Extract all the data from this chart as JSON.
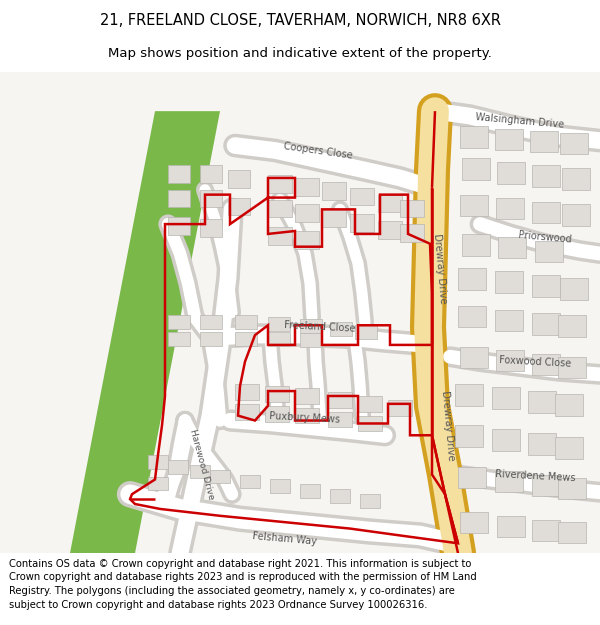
{
  "title_line1": "21, FREELAND CLOSE, TAVERHAM, NORWICH, NR8 6XR",
  "title_line2": "Map shows position and indicative extent of the property.",
  "footer_text": "Contains OS data © Crown copyright and database right 2021. This information is subject to Crown copyright and database rights 2023 and is reproduced with the permission of HM Land Registry. The polygons (including the associated geometry, namely x, y co-ordinates) are subject to Crown copyright and database rights 2023 Ordnance Survey 100026316.",
  "bg_color": "#f7f5f2",
  "road_color": "#ffffff",
  "road_outline": "#d0ccc8",
  "highlight_road_color": "#f5e0a0",
  "highlight_road_outline": "#d4a020",
  "property_outline_color": "#cc0000",
  "green_area_color": "#7ab84a",
  "building_color": "#e0ddd8",
  "building_outline": "#b8b5b0",
  "title_fontsize": 10.5,
  "subtitle_fontsize": 9.5,
  "footer_fontsize": 7.2,
  "label_color": "#555555",
  "label_fontsize": 7.0
}
